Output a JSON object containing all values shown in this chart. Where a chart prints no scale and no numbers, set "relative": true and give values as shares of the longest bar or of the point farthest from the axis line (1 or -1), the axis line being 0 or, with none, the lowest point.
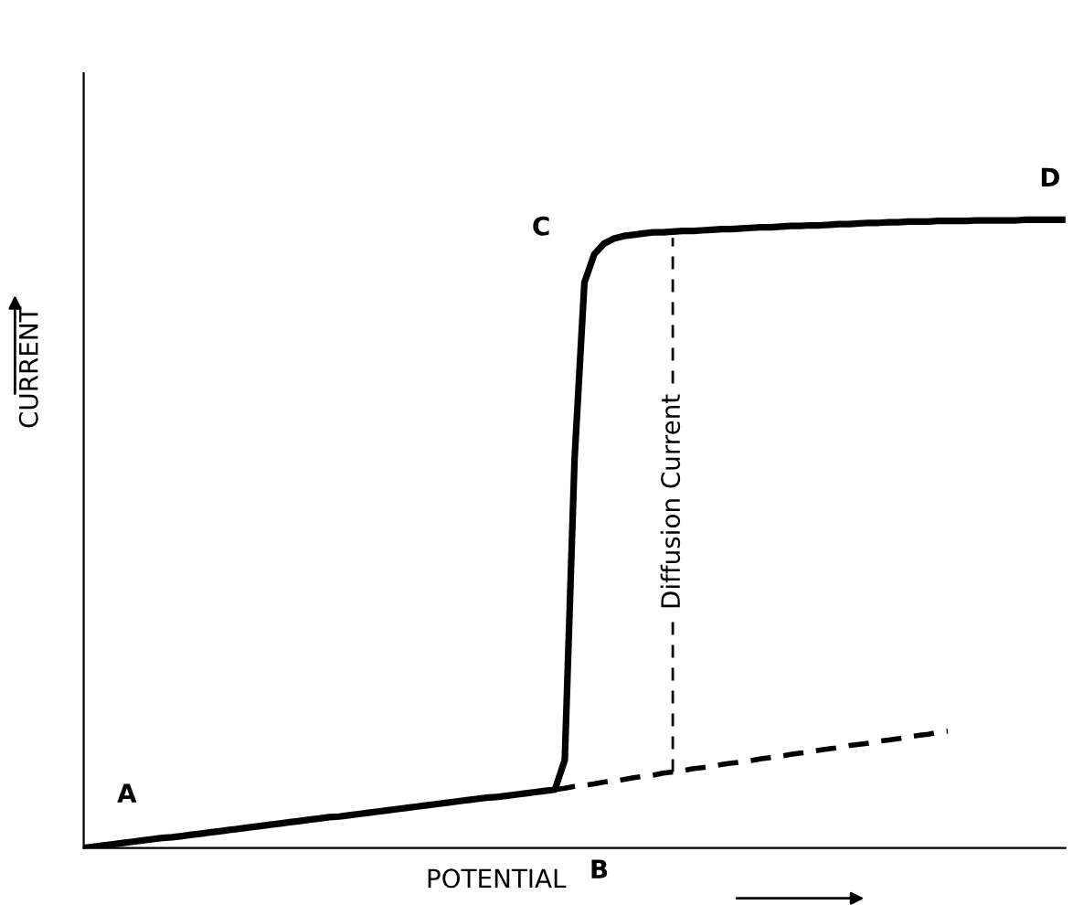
{
  "chart_data": {
    "type": "line",
    "relative": true,
    "xlabel": "POTENTIAL",
    "ylabel": "CURRENT",
    "legend": false,
    "marker": "none",
    "categories": [
      null,
      null,
      null,
      null,
      null,
      null,
      null,
      null,
      null,
      null,
      null,
      null,
      null,
      null,
      null,
      null,
      null,
      null,
      null,
      null,
      null,
      null,
      null,
      null,
      null,
      null,
      null,
      null,
      null,
      null,
      null,
      null,
      null,
      null,
      null,
      null,
      null,
      null,
      null,
      null,
      null,
      null,
      null,
      null,
      null,
      null,
      null,
      null,
      null,
      null,
      null,
      null,
      null,
      null,
      null,
      null,
      null,
      null,
      null,
      null,
      null,
      null,
      null,
      null,
      null,
      null,
      null,
      null,
      null,
      null,
      null,
      null,
      null,
      null,
      null,
      null,
      null,
      null,
      null,
      null,
      null,
      null,
      null,
      null,
      null,
      null,
      null,
      null,
      null,
      null,
      null,
      null,
      null,
      null,
      null,
      null,
      null,
      null,
      null,
      null,
      null
    ],
    "series": [
      {
        "color": "#000000",
        "line_style": "solid",
        "values": [
          0,
          0.002,
          0.004,
          0.006,
          0.008,
          0.01,
          0.012,
          0.014,
          0.016,
          0.017,
          0.019,
          0.021,
          0.023,
          0.025,
          0.027,
          0.029,
          0.031,
          0.033,
          0.035,
          0.037,
          0.039,
          0.041,
          0.043,
          0.045,
          0.047,
          0.049,
          0.05,
          0.052,
          0.054,
          0.056,
          0.058,
          0.06,
          0.062,
          0.064,
          0.066,
          0.068,
          0.07,
          0.072,
          0.074,
          0.076,
          0.078,
          0.08,
          0.081,
          0.083,
          0.085,
          0.087,
          0.089,
          0.091,
          0.093,
          0.14,
          0.62,
          0.9,
          0.945,
          0.962,
          0.97,
          0.974,
          0.976,
          0.978,
          0.98,
          0.98,
          0.981,
          0.982,
          0.982,
          0.983,
          0.984,
          0.985,
          0.985,
          0.986,
          0.987,
          0.988,
          0.988,
          0.989,
          0.99,
          0.99,
          0.991,
          0.991,
          0.992,
          0.993,
          0.993,
          0.994,
          0.995,
          0.995,
          0.996,
          0.996,
          0.997,
          0.997,
          0.997,
          0.998,
          0.998,
          0.998,
          0.998,
          0.999,
          0.999,
          0.999,
          0.999,
          0.999,
          1,
          1,
          1,
          1,
          1
        ]
      },
      {
        "color": "#000000",
        "line_style": "dashed",
        "values": [
          null,
          null,
          null,
          null,
          null,
          null,
          null,
          null,
          null,
          null,
          null,
          null,
          null,
          null,
          null,
          null,
          null,
          null,
          null,
          null,
          null,
          null,
          null,
          null,
          null,
          null,
          null,
          null,
          null,
          null,
          null,
          null,
          null,
          null,
          null,
          null,
          null,
          null,
          null,
          null,
          null,
          null,
          null,
          null,
          null,
          null,
          null,
          null,
          0.093,
          0.095,
          0.098,
          0.1,
          0.102,
          0.105,
          0.107,
          0.109,
          0.112,
          0.114,
          0.116,
          0.119,
          0.121,
          0.123,
          0.126,
          0.128,
          0.13,
          0.133,
          0.135,
          0.137,
          0.139,
          0.142,
          0.144,
          0.146,
          0.149,
          0.151,
          0.153,
          0.156,
          0.158,
          0.16,
          0.163,
          0.165,
          0.167,
          0.17,
          0.172,
          0.174,
          0.177,
          0.179,
          0.181,
          0.184,
          0.186,
          null,
          null,
          null,
          null,
          null,
          null,
          null,
          null,
          null,
          null,
          null,
          null
        ]
      }
    ],
    "annotations": [
      "A",
      "B",
      "C",
      "D",
      "Diffusion Current"
    ]
  }
}
